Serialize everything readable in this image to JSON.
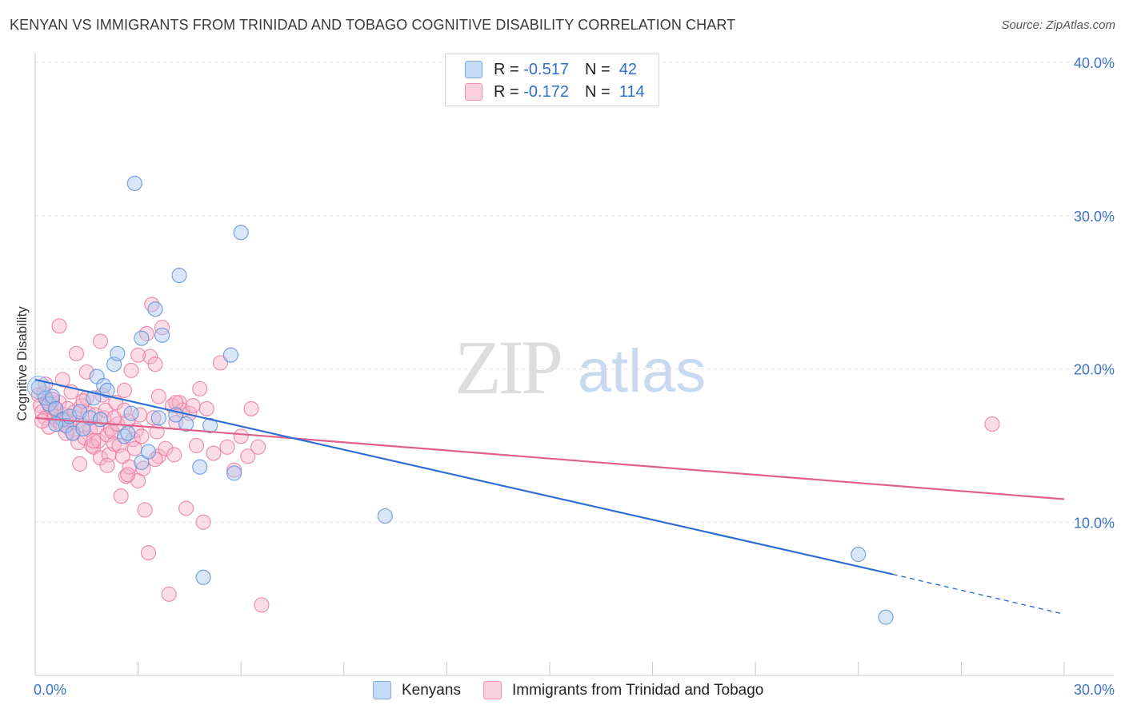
{
  "header": {
    "title": "KENYAN VS IMMIGRANTS FROM TRINIDAD AND TOBAGO COGNITIVE DISABILITY CORRELATION CHART",
    "source": "Source: ZipAtlas.com"
  },
  "watermark": {
    "zip": "ZIP",
    "atlas": "atlas"
  },
  "legend": {
    "rows": [
      {
        "r_label": "R =",
        "r_value": "-0.517",
        "n_label": "N =",
        "n_value": "42",
        "color": "#a8c8f0"
      },
      {
        "r_label": "R =",
        "r_value": "-0.172",
        "n_label": "N =",
        "n_value": "114",
        "color": "#f7b4c9"
      }
    ]
  },
  "bottom_legend": {
    "items": [
      {
        "label": "Kenyans",
        "color": "#a8c8f0"
      },
      {
        "label": "Immigrants from Trinidad and Tobago",
        "color": "#f7b4c9"
      }
    ]
  },
  "chart_data": {
    "type": "scatter",
    "title": "KENYAN VS IMMIGRANTS FROM TRINIDAD AND TOBAGO COGNITIVE DISABILITY CORRELATION CHART",
    "ylabel": "Cognitive Disability",
    "xlabel": "",
    "xlim": [
      0,
      30
    ],
    "ylim": [
      0,
      40
    ],
    "x_tick_labels": [
      "0.0%",
      "30.0%"
    ],
    "y_ticks": [
      10,
      20,
      30,
      40
    ],
    "y_tick_labels": [
      "10.0%",
      "20.0%",
      "30.0%",
      "40.0%"
    ],
    "grid": true,
    "legend_position": "top-center",
    "series": [
      {
        "name": "Kenyans",
        "color": "#5b8fd9",
        "fill": "#a8c8f0",
        "trend": {
          "x0": 0,
          "y0": 19.3,
          "x1": 25.0,
          "y1": 6.6,
          "dash_to_x": 30.0,
          "dash_to_y": 4.0,
          "color": "#2f6fcf"
        },
        "points": [
          [
            0.1,
            18.8
          ],
          [
            0.3,
            18.1
          ],
          [
            0.4,
            17.7
          ],
          [
            0.5,
            18.2
          ],
          [
            0.6,
            17.4
          ],
          [
            0.8,
            16.7
          ],
          [
            0.9,
            16.3
          ],
          [
            1.0,
            16.9
          ],
          [
            1.1,
            15.8
          ],
          [
            1.3,
            17.2
          ],
          [
            1.4,
            16.1
          ],
          [
            1.6,
            16.8
          ],
          [
            1.7,
            18.1
          ],
          [
            1.8,
            19.5
          ],
          [
            1.9,
            16.7
          ],
          [
            2.0,
            18.9
          ],
          [
            2.1,
            18.6
          ],
          [
            2.3,
            20.3
          ],
          [
            2.4,
            21.0
          ],
          [
            2.6,
            15.6
          ],
          [
            2.7,
            15.8
          ],
          [
            2.8,
            17.1
          ],
          [
            2.9,
            32.1
          ],
          [
            3.1,
            22.0
          ],
          [
            3.1,
            13.9
          ],
          [
            3.3,
            14.6
          ],
          [
            3.5,
            23.9
          ],
          [
            3.6,
            16.8
          ],
          [
            3.7,
            22.2
          ],
          [
            4.1,
            17.0
          ],
          [
            4.2,
            26.1
          ],
          [
            4.4,
            16.4
          ],
          [
            4.8,
            13.6
          ],
          [
            4.9,
            6.4
          ],
          [
            5.1,
            16.3
          ],
          [
            5.7,
            20.9
          ],
          [
            5.8,
            13.2
          ],
          [
            6.0,
            28.9
          ],
          [
            10.2,
            10.4
          ],
          [
            24.0,
            7.9
          ],
          [
            24.8,
            3.8
          ],
          [
            0.6,
            16.4
          ]
        ]
      },
      {
        "name": "Immigrants from Trinidad and Tobago",
        "color": "#e9789f",
        "fill": "#f7b4c9",
        "trend": {
          "x0": 0,
          "y0": 16.8,
          "x1": 30.0,
          "y1": 11.5,
          "color": "#e0608c"
        },
        "points": [
          [
            0.1,
            18.3
          ],
          [
            0.15,
            17.6
          ],
          [
            0.2,
            17.2
          ],
          [
            0.25,
            18.4
          ],
          [
            0.3,
            16.8
          ],
          [
            0.35,
            17.9
          ],
          [
            0.4,
            16.2
          ],
          [
            0.45,
            17.5
          ],
          [
            0.5,
            18.0
          ],
          [
            0.55,
            16.9
          ],
          [
            0.6,
            17.3
          ],
          [
            0.65,
            16.6
          ],
          [
            0.7,
            17.8
          ],
          [
            0.75,
            16.4
          ],
          [
            0.8,
            19.3
          ],
          [
            0.85,
            17.0
          ],
          [
            0.9,
            16.7
          ],
          [
            0.95,
            17.4
          ],
          [
            1.0,
            16.1
          ],
          [
            1.05,
            18.5
          ],
          [
            1.1,
            15.8
          ],
          [
            1.15,
            17.2
          ],
          [
            1.2,
            16.5
          ],
          [
            1.25,
            15.2
          ],
          [
            1.3,
            13.8
          ],
          [
            1.35,
            17.6
          ],
          [
            1.4,
            16.3
          ],
          [
            1.45,
            15.5
          ],
          [
            1.5,
            19.8
          ],
          [
            1.55,
            17.1
          ],
          [
            1.6,
            16.0
          ],
          [
            1.65,
            15.0
          ],
          [
            1.7,
            14.9
          ],
          [
            1.75,
            17.0
          ],
          [
            1.8,
            16.2
          ],
          [
            1.85,
            15.3
          ],
          [
            1.9,
            14.2
          ],
          [
            1.95,
            18.3
          ],
          [
            2.0,
            16.8
          ],
          [
            2.05,
            17.3
          ],
          [
            2.1,
            15.7
          ],
          [
            2.15,
            14.4
          ],
          [
            2.2,
            16.1
          ],
          [
            2.25,
            15.9
          ],
          [
            2.3,
            15.1
          ],
          [
            2.35,
            17.8
          ],
          [
            2.4,
            16.4
          ],
          [
            2.45,
            15.0
          ],
          [
            2.5,
            11.7
          ],
          [
            2.55,
            14.3
          ],
          [
            2.6,
            18.6
          ],
          [
            2.65,
            13.0
          ],
          [
            2.7,
            16.6
          ],
          [
            2.75,
            13.6
          ],
          [
            2.8,
            19.9
          ],
          [
            2.85,
            15.4
          ],
          [
            2.9,
            14.8
          ],
          [
            2.95,
            16.0
          ],
          [
            3.0,
            12.7
          ],
          [
            3.05,
            17.0
          ],
          [
            3.1,
            15.6
          ],
          [
            3.15,
            13.5
          ],
          [
            3.2,
            10.8
          ],
          [
            3.25,
            22.3
          ],
          [
            3.3,
            8.0
          ],
          [
            3.35,
            20.8
          ],
          [
            3.4,
            24.2
          ],
          [
            3.45,
            16.8
          ],
          [
            3.5,
            20.3
          ],
          [
            3.55,
            15.9
          ],
          [
            3.6,
            14.3
          ],
          [
            3.7,
            22.7
          ],
          [
            3.8,
            14.8
          ],
          [
            3.9,
            5.3
          ],
          [
            4.0,
            17.6
          ],
          [
            4.05,
            14.4
          ],
          [
            4.1,
            16.5
          ],
          [
            4.2,
            17.8
          ],
          [
            4.3,
            17.3
          ],
          [
            4.4,
            10.9
          ],
          [
            4.5,
            17.1
          ],
          [
            4.6,
            17.6
          ],
          [
            4.7,
            15.0
          ],
          [
            4.8,
            18.7
          ],
          [
            4.9,
            10.0
          ],
          [
            5.0,
            17.4
          ],
          [
            5.2,
            14.5
          ],
          [
            5.4,
            20.4
          ],
          [
            5.6,
            14.9
          ],
          [
            5.8,
            13.4
          ],
          [
            6.0,
            15.6
          ],
          [
            6.2,
            14.3
          ],
          [
            6.3,
            17.4
          ],
          [
            6.5,
            14.9
          ],
          [
            6.6,
            4.6
          ],
          [
            0.5,
            18.0
          ],
          [
            0.7,
            22.8
          ],
          [
            1.2,
            21.0
          ],
          [
            1.5,
            18.1
          ],
          [
            1.9,
            21.8
          ],
          [
            2.3,
            16.8
          ],
          [
            2.7,
            13.1
          ],
          [
            3.0,
            20.9
          ],
          [
            3.5,
            14.1
          ],
          [
            4.1,
            17.8
          ],
          [
            0.3,
            19.0
          ],
          [
            0.9,
            15.8
          ],
          [
            1.4,
            17.9
          ],
          [
            1.7,
            15.3
          ],
          [
            2.1,
            13.7
          ],
          [
            2.6,
            17.3
          ],
          [
            3.6,
            18.2
          ],
          [
            27.9,
            16.4
          ],
          [
            0.2,
            16.6
          ]
        ]
      }
    ]
  }
}
